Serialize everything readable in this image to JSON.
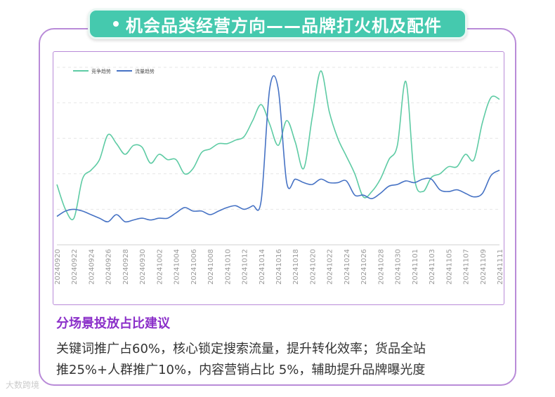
{
  "title": "机会品类经营方向——品牌打火机及配件",
  "section": {
    "heading": "分场景投放占比建议",
    "line1": "关键词推广占60%，核心锁定搜索流量，提升转化效率；货品全站",
    "line2": "推25%+人群推广10%，内容营销占比 5%，辅助提升品牌曝光度"
  },
  "watermark": "大数跨境",
  "colors": {
    "competition": "#5ecba4",
    "traffic": "#4672c4",
    "accent_purple": "#8b2fc9",
    "title_bg": "#45c9ae",
    "frame": "#b98bd8"
  },
  "chart_data": {
    "type": "line",
    "title": "",
    "xlabel": "",
    "ylabel": "",
    "legend_position": "top-left",
    "grid": "horizontal-dashed",
    "ylim": [
      0,
      100
    ],
    "x": [
      "20240920",
      "20240921",
      "20240922",
      "20240923",
      "20240924",
      "20240925",
      "20240926",
      "20240927",
      "20240928",
      "20240929",
      "20240930",
      "20241001",
      "20241002",
      "20241003",
      "20241004",
      "20241005",
      "20241006",
      "20241007",
      "20241008",
      "20241009",
      "20241010",
      "20241011",
      "20241012",
      "20241013",
      "20241014",
      "20241015",
      "20241016",
      "20241017",
      "20241018",
      "20241019",
      "20241020",
      "20241021",
      "20241022",
      "20241023",
      "20241024",
      "20241025",
      "20241026",
      "20241027",
      "20241028",
      "20241029",
      "20241030",
      "20241031",
      "20241101",
      "20241102",
      "20241103",
      "20241104",
      "20241105",
      "20241106",
      "20241107",
      "20241108",
      "20241109",
      "20241110",
      "20241111"
    ],
    "tick_labels": [
      "20240920",
      "20240922",
      "20240924",
      "20240926",
      "20240928",
      "20240930",
      "20241002",
      "20241004",
      "20241006",
      "20241008",
      "20241010",
      "20241012",
      "20241014",
      "20241016",
      "20241018",
      "20241020",
      "20241022",
      "20241024",
      "20241026",
      "20241028",
      "20241030",
      "20241101",
      "20241103",
      "20241105",
      "20241107",
      "20241109",
      "20241111"
    ],
    "series": [
      {
        "name": "竞争趋势",
        "values": [
          34,
          20,
          15,
          37,
          42,
          48,
          62,
          57,
          51,
          56,
          55,
          46,
          51,
          48,
          48,
          40,
          43,
          52,
          54,
          57,
          57,
          59,
          61,
          70,
          79,
          68,
          56,
          70,
          58,
          43,
          72,
          98,
          75,
          60,
          50,
          40,
          27,
          30,
          37,
          48,
          56,
          92,
          38,
          30,
          38,
          40,
          44,
          44,
          51,
          48,
          69,
          83,
          82
        ]
      },
      {
        "name": "流量趋势",
        "values": [
          16,
          19,
          20,
          19,
          17,
          15,
          13,
          17,
          13,
          14,
          15,
          14,
          15,
          15,
          18,
          21,
          19,
          19,
          17,
          19,
          21,
          22,
          20,
          22,
          25,
          88,
          88,
          35,
          37,
          35,
          34,
          37,
          35,
          35,
          36,
          28,
          28,
          26,
          29,
          33,
          34,
          36,
          35,
          37,
          37,
          31,
          30,
          31,
          29,
          27,
          29,
          39,
          42
        ]
      }
    ]
  }
}
